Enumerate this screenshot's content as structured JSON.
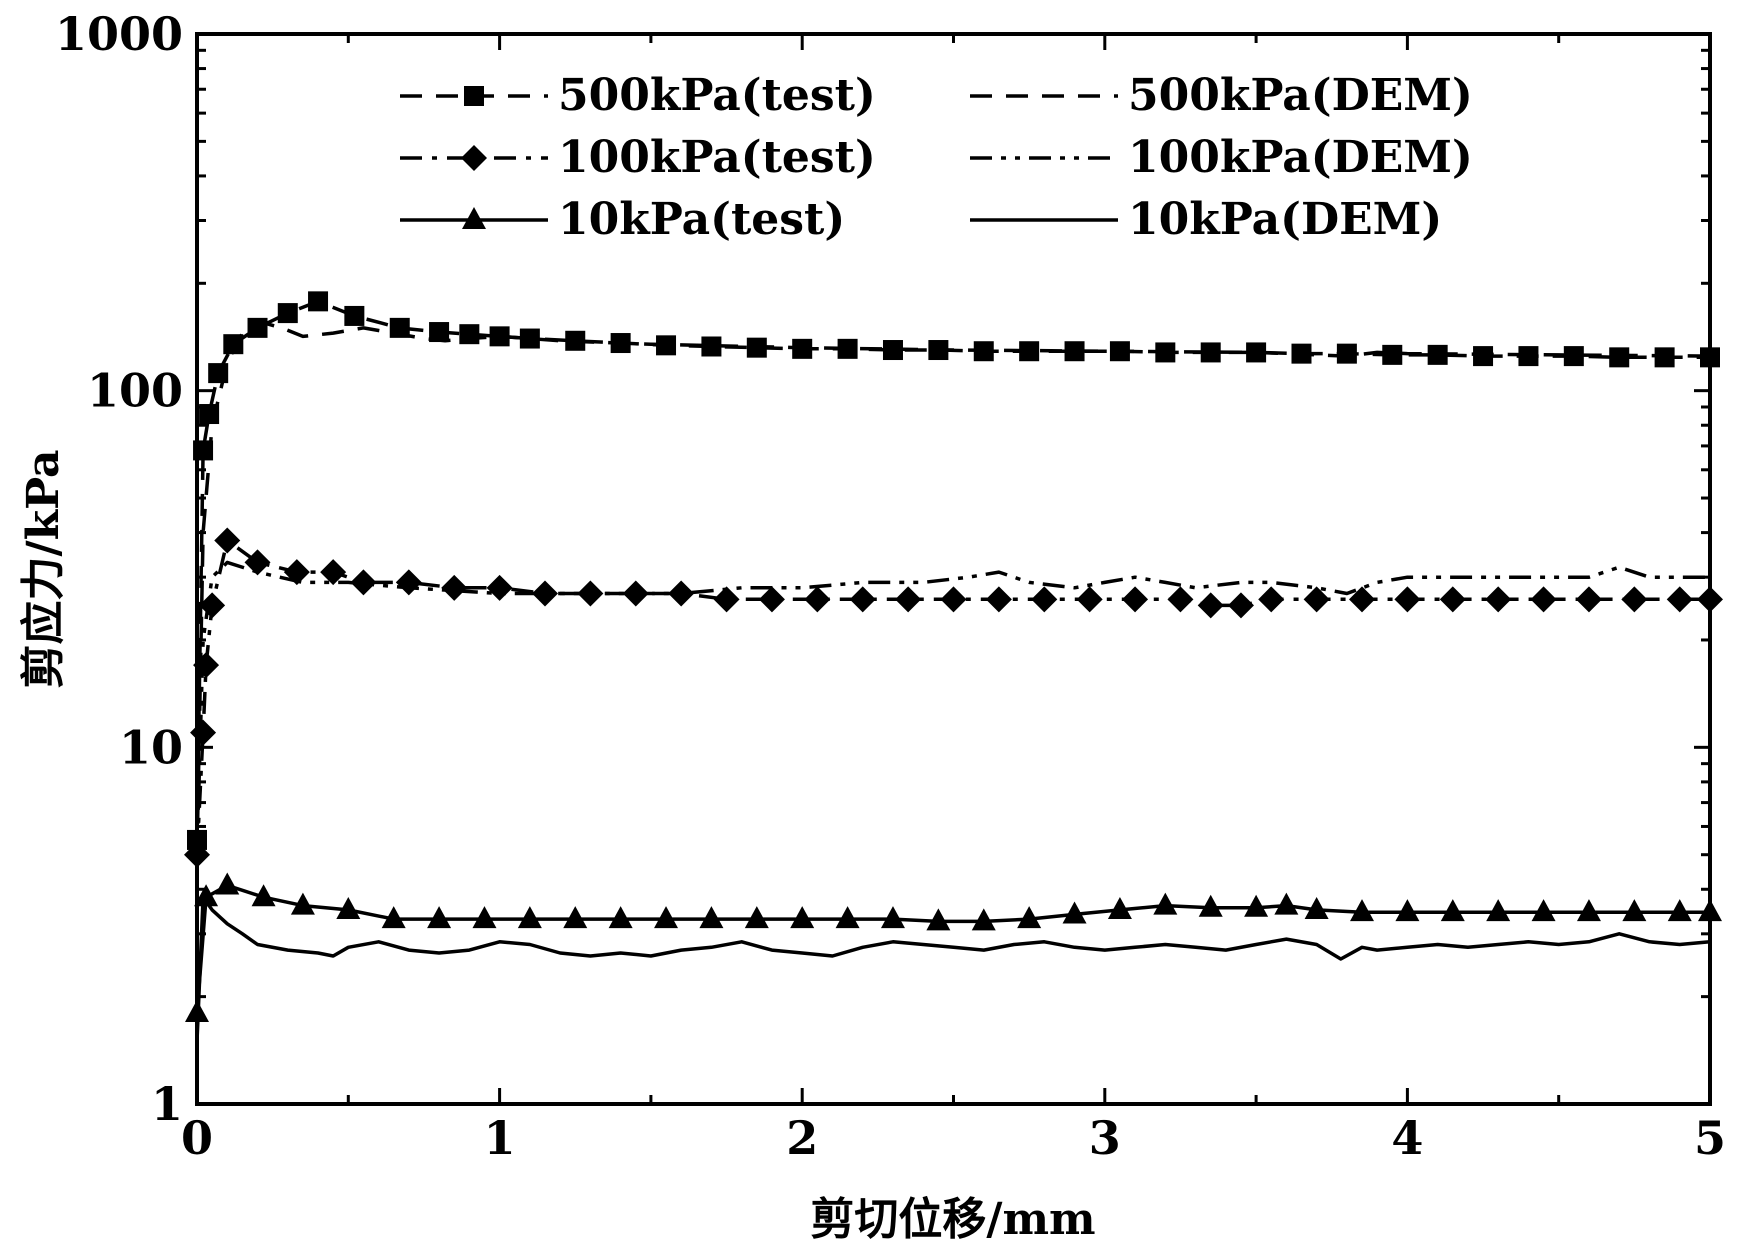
{
  "chart_data": {
    "type": "line",
    "title": "",
    "xlabel": "剪切位移/mm",
    "ylabel": "剪应力/kPa",
    "xlim": [
      0,
      5
    ],
    "ylim": [
      1,
      1000
    ],
    "y_scale": "log",
    "x_ticks": [
      "0",
      "1",
      "2",
      "3",
      "4",
      "5"
    ],
    "y_ticks": [
      "1",
      "10",
      "100",
      "1000"
    ],
    "grid": false,
    "legend_position": "top",
    "series": [
      {
        "name": "500kPa(test)",
        "style": "dash",
        "marker": "square",
        "x": [
          0.0,
          0.02,
          0.04,
          0.07,
          0.12,
          0.2,
          0.3,
          0.4,
          0.52,
          0.67,
          0.8,
          0.9,
          1.0,
          1.1,
          1.25,
          1.4,
          1.55,
          1.7,
          1.85,
          2.0,
          2.15,
          2.3,
          2.45,
          2.6,
          2.75,
          2.9,
          3.05,
          3.2,
          3.35,
          3.5,
          3.65,
          3.8,
          3.95,
          4.1,
          4.25,
          4.4,
          4.55,
          4.7,
          4.85,
          5.0
        ],
        "y": [
          5.5,
          68,
          86,
          112,
          135,
          150,
          165,
          178,
          162,
          150,
          146,
          144,
          142,
          140,
          138,
          136,
          134,
          133,
          132,
          131,
          131,
          130,
          130,
          129,
          129,
          129,
          129,
          128,
          128,
          128,
          127,
          127,
          126,
          126,
          125,
          125,
          125,
          124,
          124,
          124
        ]
      },
      {
        "name": "500kPa(DEM)",
        "style": "dash",
        "marker": "none",
        "x": [
          0.0,
          0.02,
          0.05,
          0.1,
          0.15,
          0.22,
          0.28,
          0.35,
          0.45,
          0.55,
          0.65,
          0.75,
          0.82,
          0.9,
          1.0,
          1.2,
          1.5,
          2.0,
          2.5,
          3.0,
          3.5,
          3.8,
          3.9,
          4.0,
          4.5,
          5.0
        ],
        "y": [
          5,
          40,
          80,
          120,
          145,
          155,
          150,
          142,
          145,
          150,
          145,
          140,
          138,
          140,
          142,
          138,
          135,
          132,
          130,
          129,
          128,
          125,
          128,
          127,
          126,
          125
        ]
      },
      {
        "name": "100kPa(test)",
        "style": "dashdot",
        "marker": "diamond",
        "x": [
          0.0,
          0.02,
          0.03,
          0.05,
          0.1,
          0.2,
          0.33,
          0.45,
          0.55,
          0.7,
          0.85,
          1.0,
          1.15,
          1.3,
          1.45,
          1.6,
          1.75,
          1.9,
          2.05,
          2.2,
          2.35,
          2.5,
          2.65,
          2.8,
          2.95,
          3.1,
          3.25,
          3.35,
          3.45,
          3.55,
          3.7,
          3.85,
          4.0,
          4.15,
          4.3,
          4.45,
          4.6,
          4.75,
          4.9,
          5.0
        ],
        "y": [
          5,
          11,
          17,
          25,
          38,
          33,
          31,
          31,
          29,
          29,
          28,
          28,
          27,
          27,
          27,
          27,
          26,
          26,
          26,
          26,
          26,
          26,
          26,
          26,
          26,
          26,
          26,
          25,
          25,
          26,
          26,
          26,
          26,
          26,
          26,
          26,
          26,
          26,
          26,
          26
        ]
      },
      {
        "name": "100kPa(DEM)",
        "style": "dashdotdot",
        "marker": "none",
        "x": [
          0.0,
          0.02,
          0.05,
          0.1,
          0.2,
          0.35,
          0.5,
          0.7,
          1.0,
          1.3,
          1.6,
          1.8,
          2.0,
          2.2,
          2.4,
          2.55,
          2.65,
          2.75,
          2.9,
          3.0,
          3.1,
          3.2,
          3.3,
          3.45,
          3.55,
          3.7,
          3.8,
          3.9,
          4.0,
          4.2,
          4.4,
          4.6,
          4.7,
          4.8,
          5.0
        ],
        "y": [
          5,
          20,
          30,
          33,
          31,
          29,
          29,
          28,
          27,
          27,
          27,
          28,
          28,
          29,
          29,
          30,
          31,
          29,
          28,
          29,
          30,
          29,
          28,
          29,
          29,
          28,
          27,
          29,
          30,
          30,
          30,
          30,
          32,
          30,
          30
        ]
      },
      {
        "name": "10kPa(test)",
        "style": "solid",
        "marker": "triangle",
        "x": [
          0.0,
          0.03,
          0.1,
          0.22,
          0.35,
          0.5,
          0.65,
          0.8,
          0.95,
          1.1,
          1.25,
          1.4,
          1.55,
          1.7,
          1.85,
          2.0,
          2.15,
          2.3,
          2.45,
          2.6,
          2.75,
          2.9,
          3.05,
          3.2,
          3.35,
          3.5,
          3.6,
          3.7,
          3.85,
          4.0,
          4.15,
          4.3,
          4.45,
          4.6,
          4.75,
          4.9,
          5.0
        ],
        "y": [
          1.8,
          3.8,
          4.1,
          3.8,
          3.6,
          3.5,
          3.3,
          3.3,
          3.3,
          3.3,
          3.3,
          3.3,
          3.3,
          3.3,
          3.3,
          3.3,
          3.3,
          3.3,
          3.25,
          3.25,
          3.3,
          3.4,
          3.5,
          3.6,
          3.55,
          3.55,
          3.6,
          3.5,
          3.45,
          3.45,
          3.45,
          3.45,
          3.45,
          3.45,
          3.45,
          3.45,
          3.45
        ]
      },
      {
        "name": "10kPa(DEM)",
        "style": "solid",
        "marker": "none",
        "x": [
          0.0,
          0.02,
          0.05,
          0.1,
          0.15,
          0.2,
          0.3,
          0.4,
          0.45,
          0.5,
          0.6,
          0.7,
          0.8,
          0.9,
          1.0,
          1.1,
          1.2,
          1.3,
          1.4,
          1.5,
          1.6,
          1.7,
          1.8,
          1.9,
          2.0,
          2.1,
          2.2,
          2.3,
          2.4,
          2.5,
          2.6,
          2.7,
          2.8,
          2.9,
          3.0,
          3.1,
          3.2,
          3.3,
          3.4,
          3.5,
          3.6,
          3.7,
          3.78,
          3.85,
          3.9,
          4.0,
          4.1,
          4.2,
          4.3,
          4.4,
          4.5,
          4.6,
          4.7,
          4.8,
          4.9,
          5.0
        ],
        "y": [
          1.5,
          3.8,
          3.5,
          3.2,
          3.0,
          2.8,
          2.7,
          2.65,
          2.6,
          2.75,
          2.85,
          2.7,
          2.65,
          2.7,
          2.85,
          2.8,
          2.65,
          2.6,
          2.65,
          2.6,
          2.7,
          2.75,
          2.85,
          2.7,
          2.65,
          2.6,
          2.75,
          2.85,
          2.8,
          2.75,
          2.7,
          2.8,
          2.85,
          2.75,
          2.7,
          2.75,
          2.8,
          2.75,
          2.7,
          2.8,
          2.9,
          2.8,
          2.55,
          2.75,
          2.7,
          2.75,
          2.8,
          2.75,
          2.8,
          2.85,
          2.8,
          2.85,
          3.0,
          2.85,
          2.8,
          2.85
        ]
      }
    ]
  }
}
